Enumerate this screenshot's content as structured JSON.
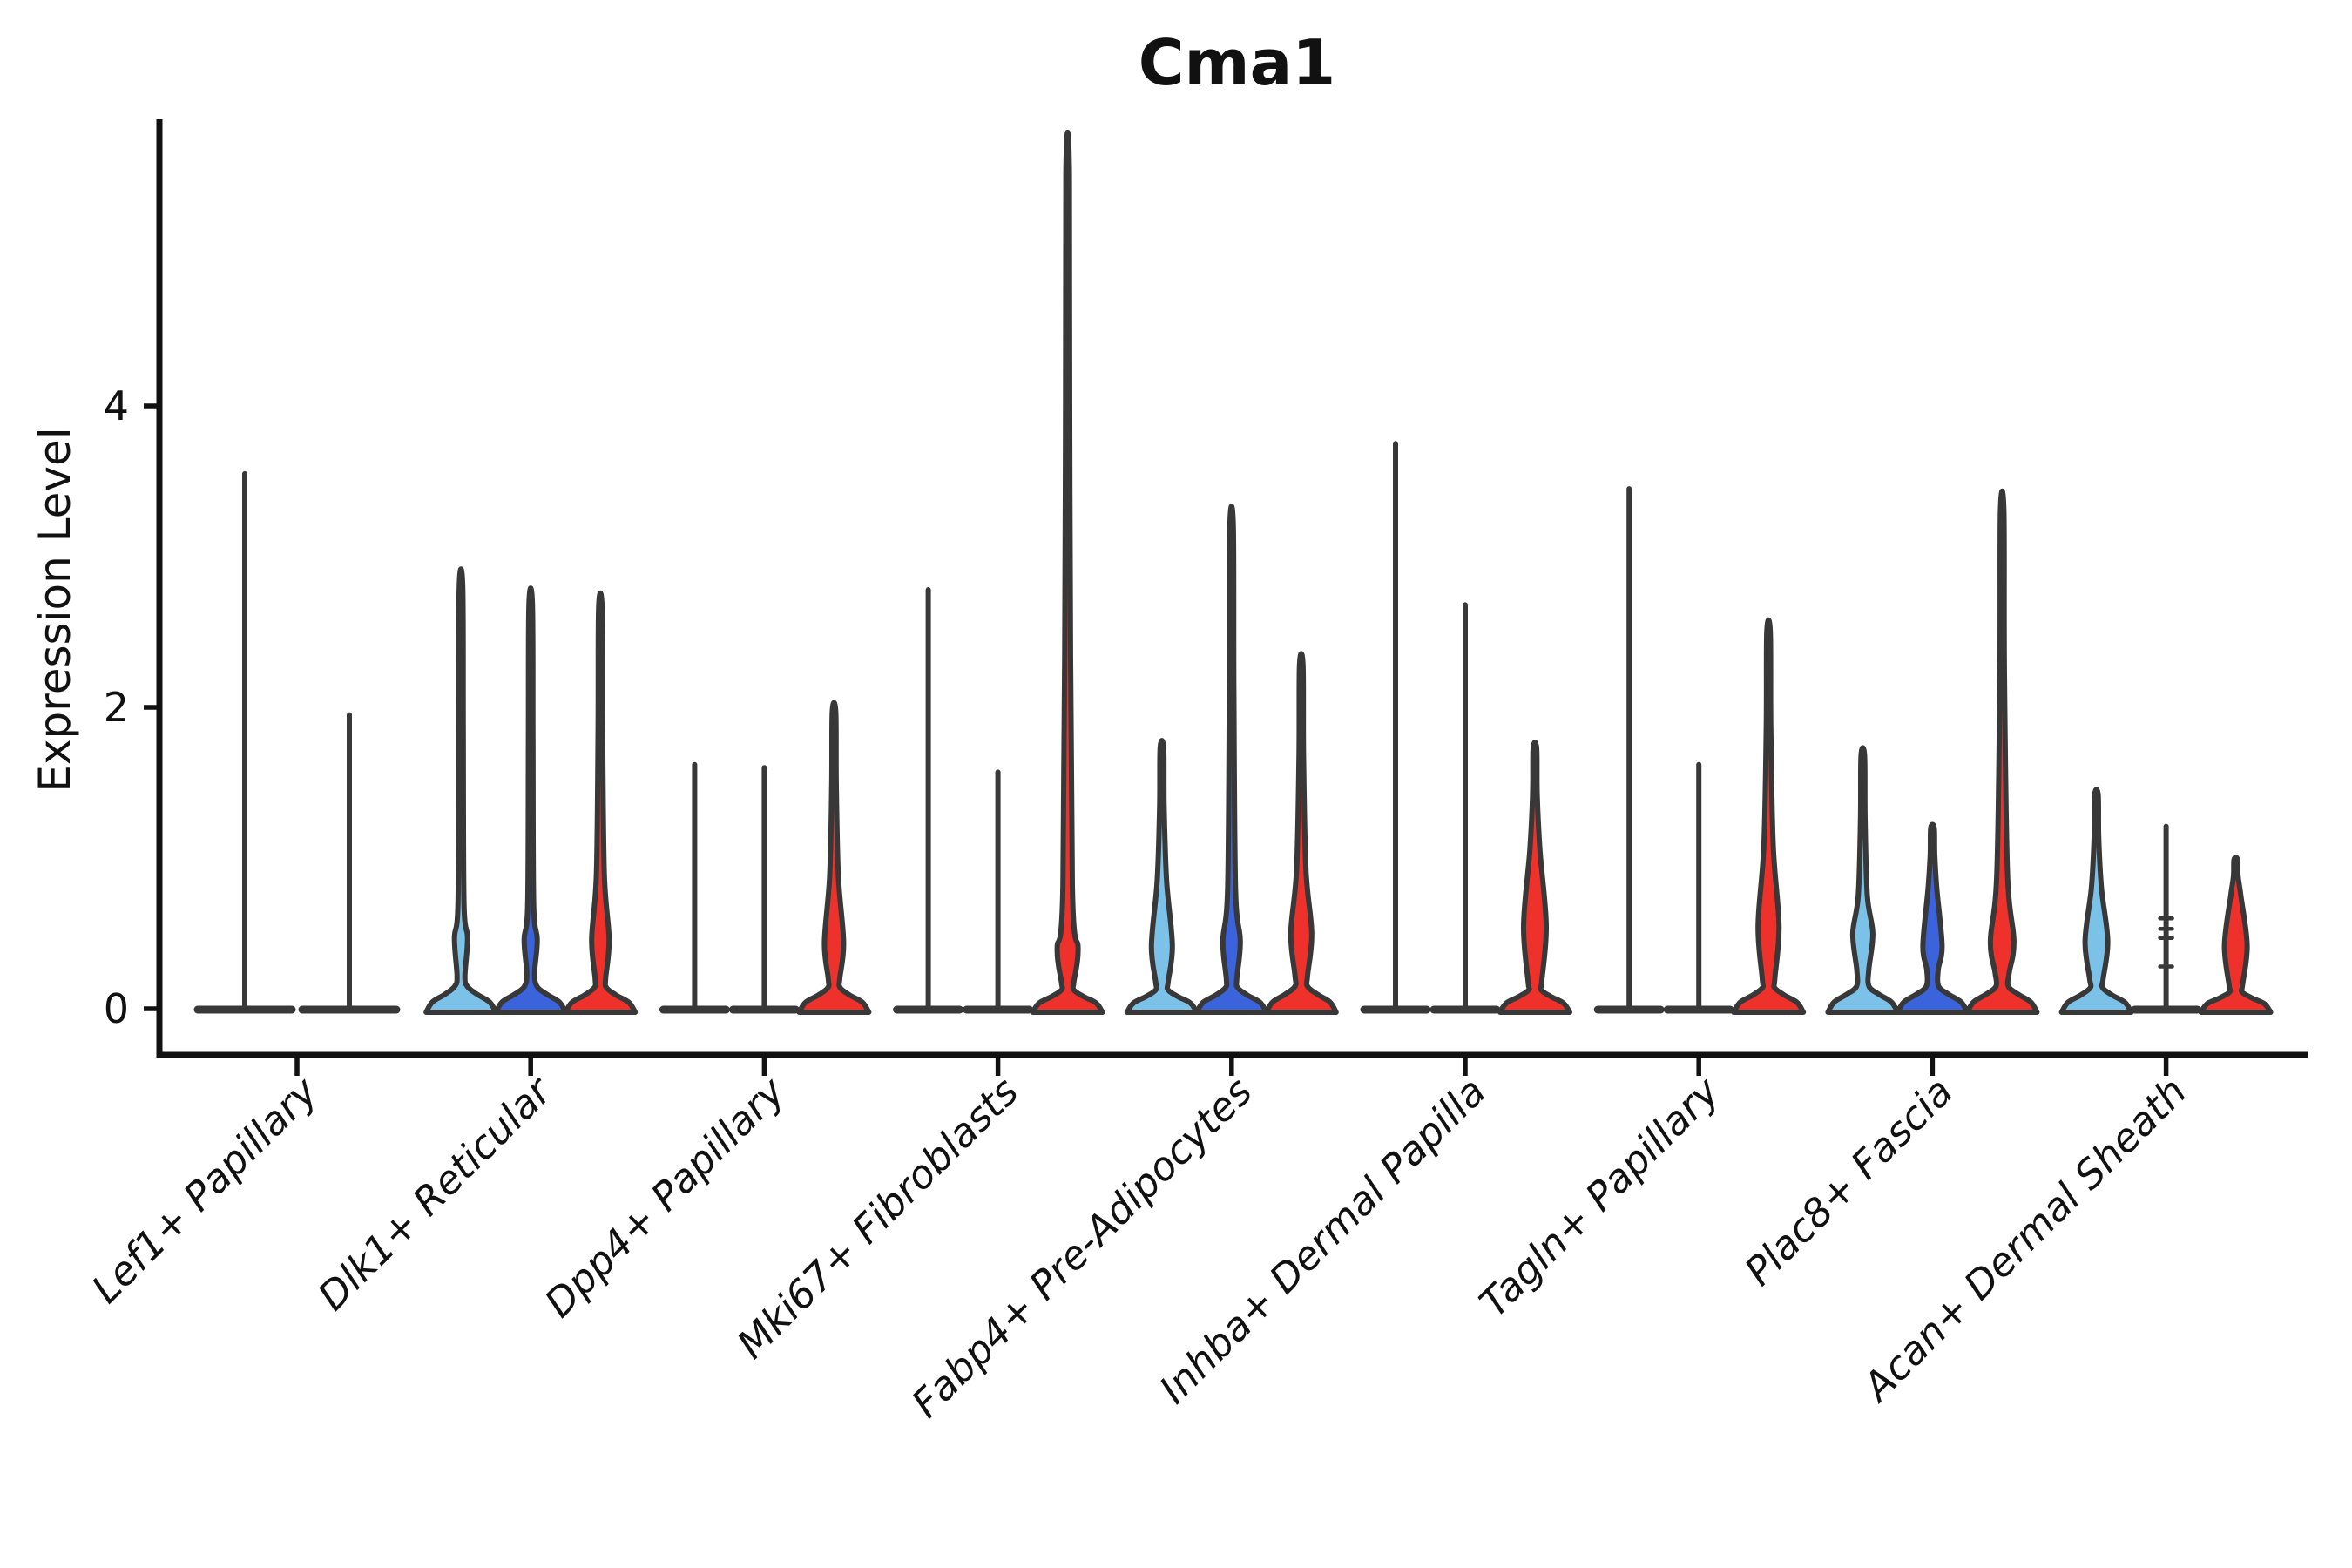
{
  "title": "Cma1",
  "y_axis": {
    "label": "Expression Level",
    "tick_labels": [
      "0",
      "2",
      "4"
    ],
    "tick_values": [
      0,
      2,
      4
    ]
  },
  "x_axis": {
    "categories": [
      "Lef1+ Papillary",
      "Dlk1+ Reticular",
      "Dpp4+ Papillary",
      "Mki67+ Fibroblasts",
      "Fabp4+ Pre-Adipocytes",
      "Inhba+ Dermal Papilla",
      "Tagln+ Papillary",
      "Plac8+ Fascia",
      "Acan+ Dermal Sheath"
    ]
  },
  "colors": {
    "light_blue": "#7CC1E8",
    "dark_blue": "#3B63DC",
    "red": "#EE322B",
    "outline": "#383838",
    "axis": "#111111",
    "background": "#ffffff"
  },
  "chart_data": {
    "type": "violin",
    "title": "Cma1",
    "ylabel": "Expression Level",
    "xlabel": "",
    "ylim": [
      -0.32,
      5.9
    ],
    "yticks": [
      0,
      2,
      4
    ],
    "grid": false,
    "legend": "none",
    "categories": [
      "Lef1+ Papillary",
      "Dlk1+ Reticular",
      "Dpp4+ Papillary",
      "Mki67+ Fibroblasts",
      "Fabp4+ Pre-Adipocytes",
      "Inhba+ Dermal Papilla",
      "Tagln+ Papillary",
      "Plac8+ Fascia",
      "Acan+ Dermal Sheath"
    ],
    "series": [
      {
        "name": "light-blue-group",
        "color": "#7CC1E8",
        "max_values": [
          3.55,
          2.8,
          1.62,
          2.78,
          1.73,
          3.75,
          3.45,
          1.68,
          1.42
        ]
      },
      {
        "name": "dark-blue-group",
        "color": "#3B63DC",
        "max_values": [
          1.95,
          2.68,
          1.6,
          1.57,
          3.2,
          2.68,
          1.62,
          1.2,
          1.21
        ]
      },
      {
        "name": "red-group",
        "color": "#EE322B",
        "max_values": [
          null,
          2.66,
          1.97,
          5.55,
          2.28,
          1.73,
          2.5,
          3.3,
          0.99
        ]
      }
    ],
    "violins": [
      {
        "cat": 0,
        "group": 0,
        "shape": "flat",
        "max": 3.55
      },
      {
        "cat": 0,
        "group": 1,
        "shape": "flat",
        "max": 1.95
      },
      {
        "cat": 1,
        "group": 0,
        "shape": "bulge",
        "max": 2.8,
        "bulge": {
          "lo": 0.22,
          "peak": 0.47,
          "hi": 0.71,
          "w": 7.5
        }
      },
      {
        "cat": 1,
        "group": 1,
        "shape": "bulge",
        "max": 2.68,
        "bulge": {
          "lo": 0.24,
          "peak": 0.46,
          "hi": 0.7,
          "w": 7.5
        }
      },
      {
        "cat": 1,
        "group": 2,
        "shape": "bulge",
        "max": 2.66,
        "bulge": {
          "lo": 0.2,
          "peak": 0.46,
          "hi": 0.9,
          "w": 10
        }
      },
      {
        "cat": 2,
        "group": 0,
        "shape": "flat",
        "max": 1.62
      },
      {
        "cat": 2,
        "group": 1,
        "shape": "flat",
        "max": 1.6
      },
      {
        "cat": 2,
        "group": 2,
        "shape": "bulge",
        "max": 1.97,
        "bulge": {
          "lo": 0.2,
          "peak": 0.44,
          "hi": 0.88,
          "w": 11
        }
      },
      {
        "cat": 3,
        "group": 0,
        "shape": "flat",
        "max": 2.78
      },
      {
        "cat": 3,
        "group": 1,
        "shape": "flat",
        "max": 1.57
      },
      {
        "cat": 3,
        "group": 2,
        "shape": "bulge",
        "max": 5.55,
        "bulge": {
          "lo": 0.18,
          "peak": 0.4,
          "hi": 0.82,
          "w": 12
        }
      },
      {
        "cat": 4,
        "group": 0,
        "shape": "bulge",
        "max": 1.73,
        "bulge": {
          "lo": 0.18,
          "peak": 0.42,
          "hi": 0.85,
          "w": 12
        }
      },
      {
        "cat": 4,
        "group": 1,
        "shape": "bulge",
        "max": 3.2,
        "bulge": {
          "lo": 0.2,
          "peak": 0.45,
          "hi": 0.8,
          "w": 10
        }
      },
      {
        "cat": 4,
        "group": 2,
        "shape": "bulge",
        "max": 2.28,
        "bulge": {
          "lo": 0.22,
          "peak": 0.5,
          "hi": 0.92,
          "w": 12
        }
      },
      {
        "cat": 5,
        "group": 0,
        "shape": "flat",
        "max": 3.75
      },
      {
        "cat": 5,
        "group": 1,
        "shape": "flat",
        "max": 2.68
      },
      {
        "cat": 5,
        "group": 2,
        "shape": "bulge",
        "max": 1.73,
        "bulge": {
          "lo": 0.18,
          "peak": 0.55,
          "hi": 1.05,
          "w": 13
        }
      },
      {
        "cat": 6,
        "group": 0,
        "shape": "flat",
        "max": 3.45
      },
      {
        "cat": 6,
        "group": 1,
        "shape": "flat",
        "max": 1.62
      },
      {
        "cat": 6,
        "group": 2,
        "shape": "bulge",
        "max": 2.5,
        "bulge": {
          "lo": 0.2,
          "peak": 0.55,
          "hi": 1.08,
          "w": 12
        }
      },
      {
        "cat": 7,
        "group": 0,
        "shape": "bulge",
        "max": 1.68,
        "bulge": {
          "lo": 0.26,
          "peak": 0.5,
          "hi": 0.75,
          "w": 11.5
        }
      },
      {
        "cat": 7,
        "group": 1,
        "shape": "bulge",
        "max": 1.2,
        "bulge": {
          "lo": 0.26,
          "peak": 0.42,
          "hi": 0.8,
          "w": 11
        }
      },
      {
        "cat": 7,
        "group": 2,
        "shape": "bulge",
        "max": 3.3,
        "bulge": {
          "lo": 0.24,
          "peak": 0.45,
          "hi": 0.9,
          "w": 13.5
        }
      },
      {
        "cat": 8,
        "group": 0,
        "shape": "bulge",
        "max": 1.42,
        "bulge": {
          "lo": 0.2,
          "peak": 0.45,
          "hi": 0.8,
          "w": 13
        }
      },
      {
        "cat": 8,
        "group": 1,
        "shape": "points",
        "max": 1.21,
        "points": [
          0.28,
          0.47,
          0.53,
          0.6
        ]
      },
      {
        "cat": 8,
        "group": 2,
        "shape": "bulge",
        "max": 0.99,
        "bulge": {
          "lo": 0.16,
          "peak": 0.42,
          "hi": 0.75,
          "w": 13
        }
      }
    ]
  }
}
